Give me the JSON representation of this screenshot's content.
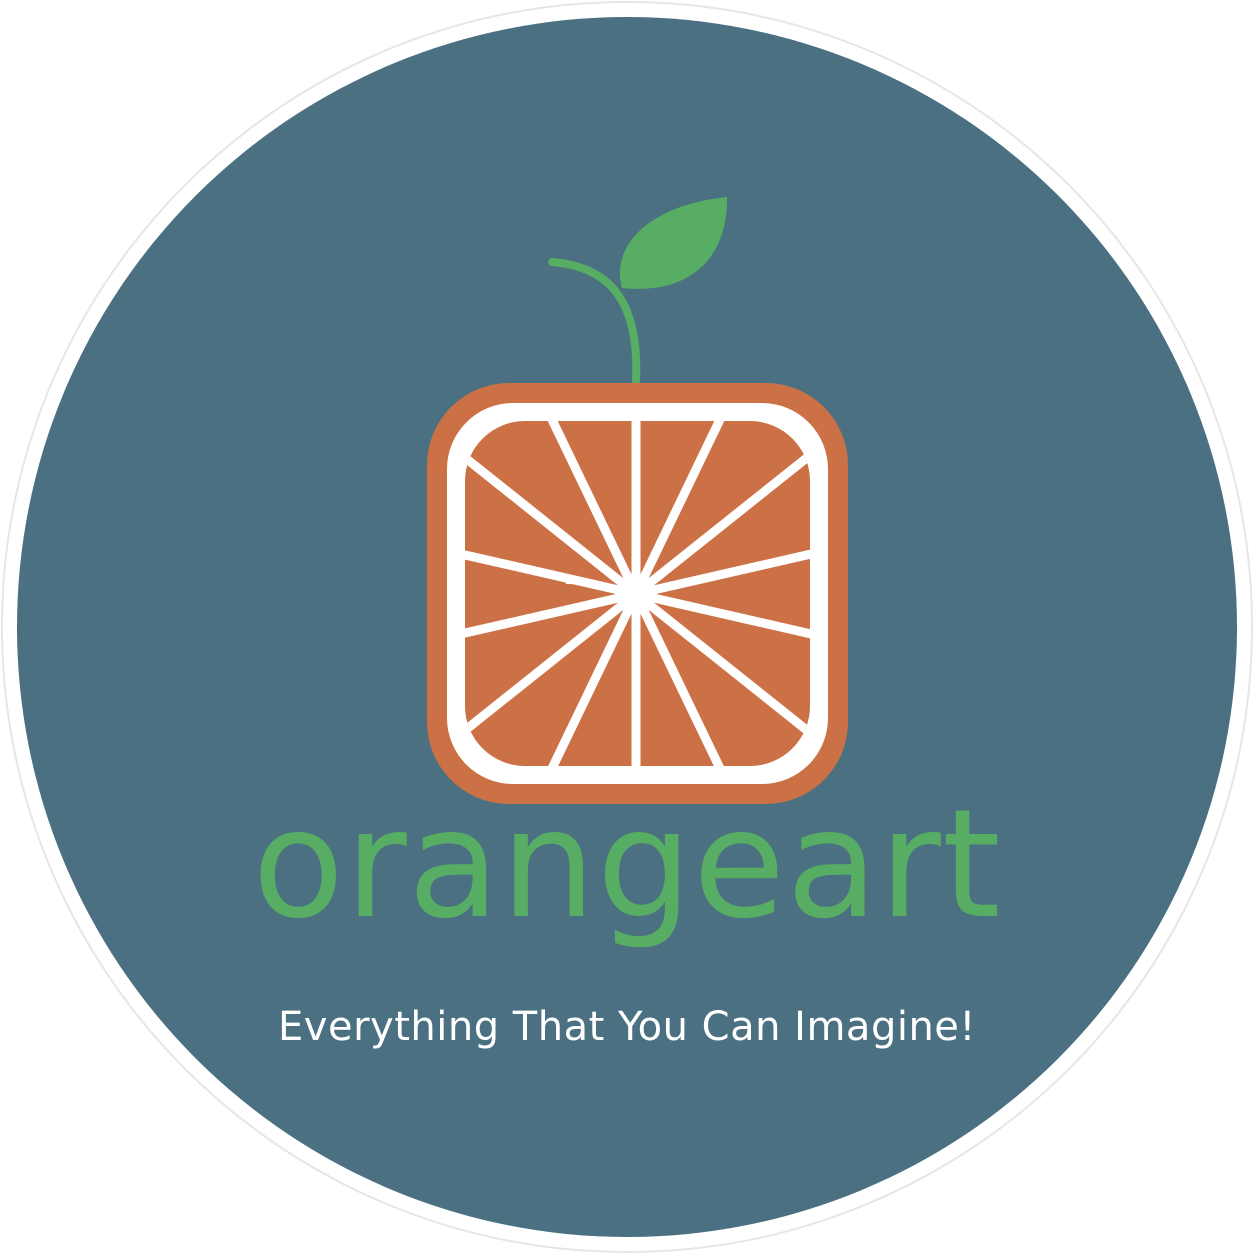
{
  "logo": {
    "brand_name": "orangeart",
    "tagline": "Everything That You Can Imagine!",
    "icon": "orange-slice-icon",
    "leaf_icon": "leaf-sprout-icon"
  },
  "colors": {
    "background_circle": "#4a7082",
    "outer_ring": "#ffffff",
    "brand_text": "#56ad63",
    "tagline_text": "#ffffff",
    "orange_peel": "#cc7046",
    "orange_pith": "#ffffff",
    "orange_flesh": "#cc7046",
    "leaf": "#56ad63"
  }
}
